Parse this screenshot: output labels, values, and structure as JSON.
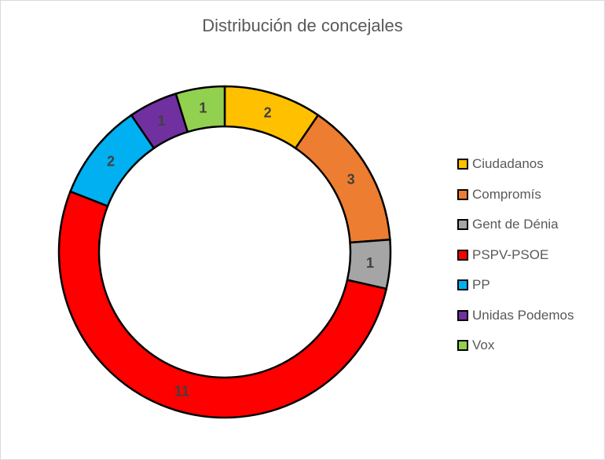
{
  "chart_data": {
    "type": "pie",
    "subtype": "doughnut",
    "title": "Distribución de concejales",
    "categories": [
      "Ciudadanos",
      "Compromís",
      "Gent de Dénia",
      "PSPV-PSOE",
      "PP",
      "Unidas Podemos",
      "Vox"
    ],
    "values": [
      2,
      3,
      1,
      11,
      2,
      1,
      1
    ],
    "colors": [
      "#FFC000",
      "#ED7D31",
      "#A5A5A5",
      "#FF0000",
      "#00B0F0",
      "#7030A0",
      "#92D050"
    ],
    "total": 21,
    "legend_position": "right",
    "data_labels": true
  },
  "title": "Distribución de concejales",
  "legend": [
    {
      "label": "Ciudadanos",
      "color": "#FFC000"
    },
    {
      "label": "Compromís",
      "color": "#ED7D31"
    },
    {
      "label": "Gent de Dénia",
      "color": "#A5A5A5"
    },
    {
      "label": "PSPV-PSOE",
      "color": "#FF0000"
    },
    {
      "label": "PP",
      "color": "#00B0F0"
    },
    {
      "label": "Unidas Podemos",
      "color": "#7030A0"
    },
    {
      "label": "Vox",
      "color": "#92D050"
    }
  ]
}
